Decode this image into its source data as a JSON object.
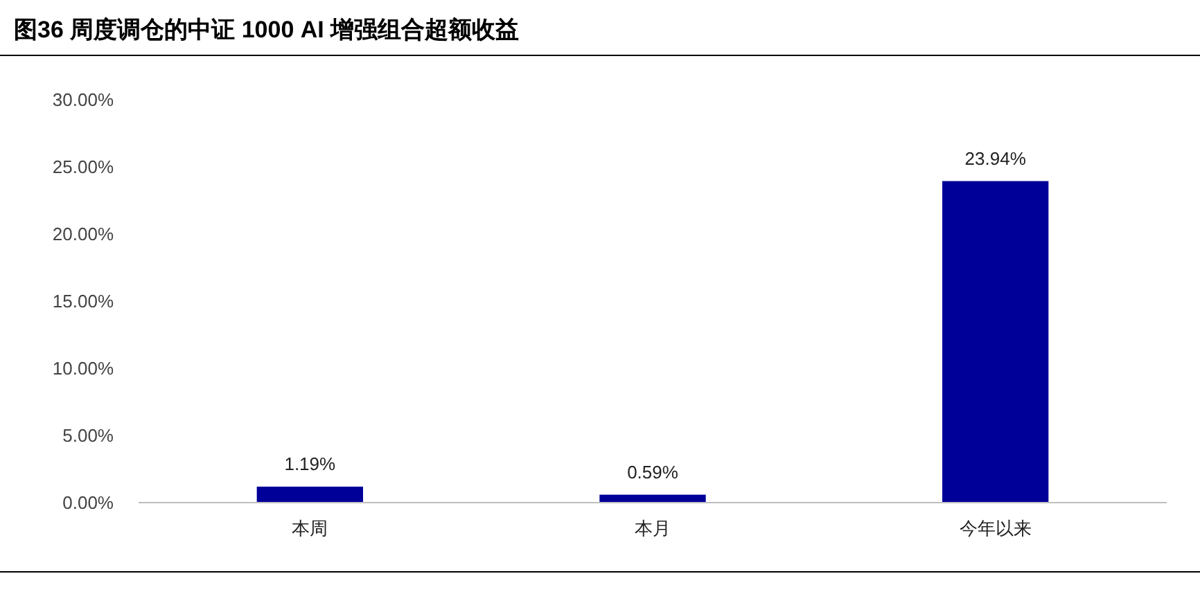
{
  "chart_data": {
    "type": "bar",
    "title": "图36 周度调仓的中证 1000 AI 增强组合超额收益",
    "categories": [
      "本周",
      "本月",
      "今年以来"
    ],
    "values": [
      1.19,
      0.59,
      23.94
    ],
    "value_labels": [
      "1.19%",
      "0.59%",
      "23.94%"
    ],
    "color": "#000099",
    "ylim": [
      0,
      30
    ],
    "yticks": [
      {
        "value": 0,
        "label": "0.00%"
      },
      {
        "value": 5,
        "label": "5.00%"
      },
      {
        "value": 10,
        "label": "10.00%"
      },
      {
        "value": 15,
        "label": "15.00%"
      },
      {
        "value": 20,
        "label": "20.00%"
      },
      {
        "value": 25,
        "label": "25.00%"
      },
      {
        "value": 30,
        "label": "30.00%"
      }
    ],
    "grid": false
  }
}
